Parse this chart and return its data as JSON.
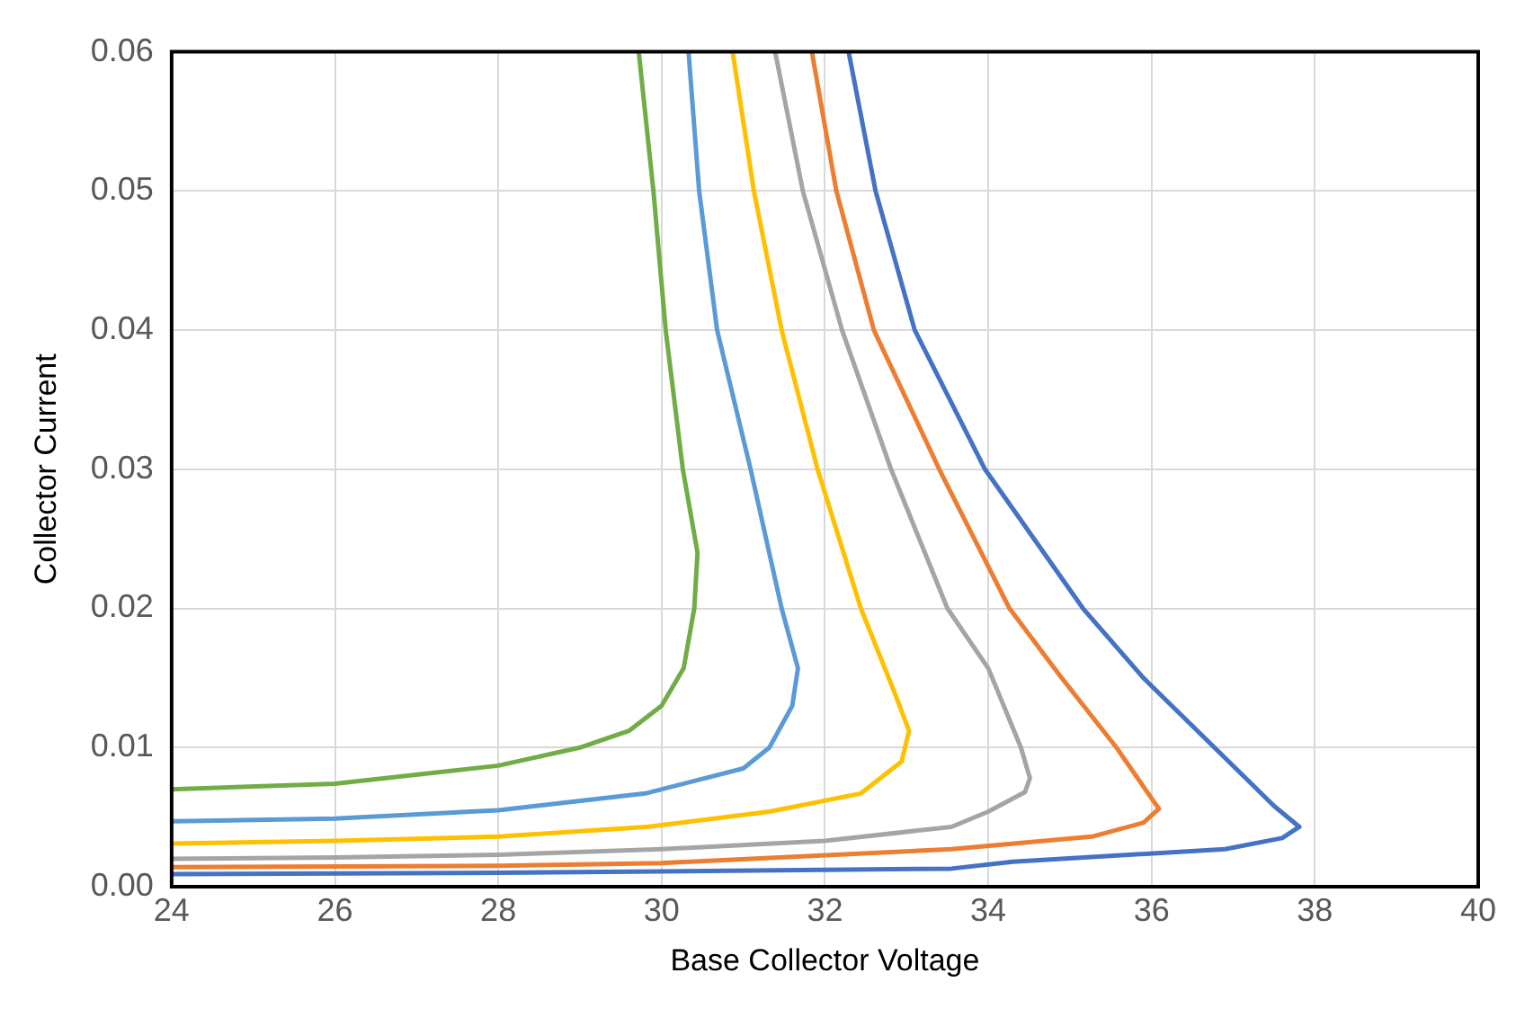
{
  "chart_data": {
    "type": "line",
    "xlabel": "Base Collector Voltage",
    "ylabel": "Collector Current",
    "xlim": [
      24,
      40
    ],
    "xticks": [
      24,
      26,
      28,
      30,
      32,
      34,
      36,
      38,
      40
    ],
    "ylim": [
      0,
      0.06
    ],
    "yticks": [
      {
        "value": 0,
        "label": "0.00"
      },
      {
        "value": 0.01,
        "label": "0.01"
      },
      {
        "value": 0.02,
        "label": "0.02"
      },
      {
        "value": 0.03,
        "label": "0.03"
      },
      {
        "value": 0.04,
        "label": "0.04"
      },
      {
        "value": 0.05,
        "label": "0.05"
      },
      {
        "value": 0.06,
        "label": "0.06"
      }
    ],
    "grid": true,
    "legend": false,
    "marker": "none",
    "line_style": "solid",
    "series": [
      {
        "color": "#70ad47",
        "x": [
          24,
          26,
          28,
          29,
          29.6,
          30,
          30.27,
          30.4,
          30.44,
          30.26,
          30.05,
          29.9,
          29.72
        ],
        "values": [
          0.007,
          0.0074,
          0.0087,
          0.01,
          0.0112,
          0.013,
          0.0157,
          0.02,
          0.024,
          0.03,
          0.04,
          0.05,
          0.06
        ]
      },
      {
        "color": "#5b9bd5",
        "x": [
          24,
          26,
          28,
          29.8,
          31,
          31.32,
          31.6,
          31.67,
          31.47,
          31.09,
          30.68,
          30.46,
          30.33
        ],
        "values": [
          0.0047,
          0.0049,
          0.0055,
          0.0067,
          0.0085,
          0.01,
          0.013,
          0.0157,
          0.02,
          0.03,
          0.04,
          0.05,
          0.06
        ]
      },
      {
        "color": "#ffc000",
        "x": [
          24,
          26,
          28,
          29.82,
          31.32,
          32.44,
          32.94,
          33.03,
          32.85,
          32.44,
          31.91,
          31.47,
          31.13,
          30.87
        ],
        "values": [
          0.0031,
          0.0033,
          0.0036,
          0.0043,
          0.0054,
          0.0067,
          0.009,
          0.0112,
          0.014,
          0.02,
          0.03,
          0.04,
          0.05,
          0.06
        ]
      },
      {
        "color": "#a5a5a5",
        "x": [
          24,
          26,
          28,
          30,
          32,
          33.55,
          34,
          34.45,
          34.51,
          34.4,
          34,
          33.5,
          32.81,
          32.21,
          31.73,
          31.39
        ],
        "values": [
          0.002,
          0.0021,
          0.0023,
          0.0027,
          0.0033,
          0.0043,
          0.0054,
          0.0068,
          0.0078,
          0.01,
          0.0157,
          0.02,
          0.03,
          0.04,
          0.05,
          0.06
        ]
      },
      {
        "color": "#ed7d31",
        "x": [
          24,
          28,
          30,
          33.55,
          35.27,
          35.9,
          36.09,
          35.9,
          35.57,
          34.9,
          34.26,
          33.4,
          32.6,
          32.14,
          31.84
        ],
        "values": [
          0.0014,
          0.0015,
          0.0017,
          0.0027,
          0.0036,
          0.0046,
          0.0056,
          0.0072,
          0.01,
          0.015,
          0.02,
          0.03,
          0.04,
          0.05,
          0.06
        ]
      },
      {
        "color": "#4472c4",
        "x": [
          24,
          28,
          30,
          33.55,
          34.3,
          36.9,
          37.6,
          37.81,
          37.5,
          36.77,
          35.9,
          35.16,
          33.96,
          33.1,
          32.62,
          32.29
        ],
        "values": [
          0.0009,
          0.001,
          0.0011,
          0.0013,
          0.0018,
          0.0027,
          0.0035,
          0.0043,
          0.0058,
          0.01,
          0.015,
          0.02,
          0.03,
          0.04,
          0.05,
          0.06
        ]
      }
    ]
  }
}
